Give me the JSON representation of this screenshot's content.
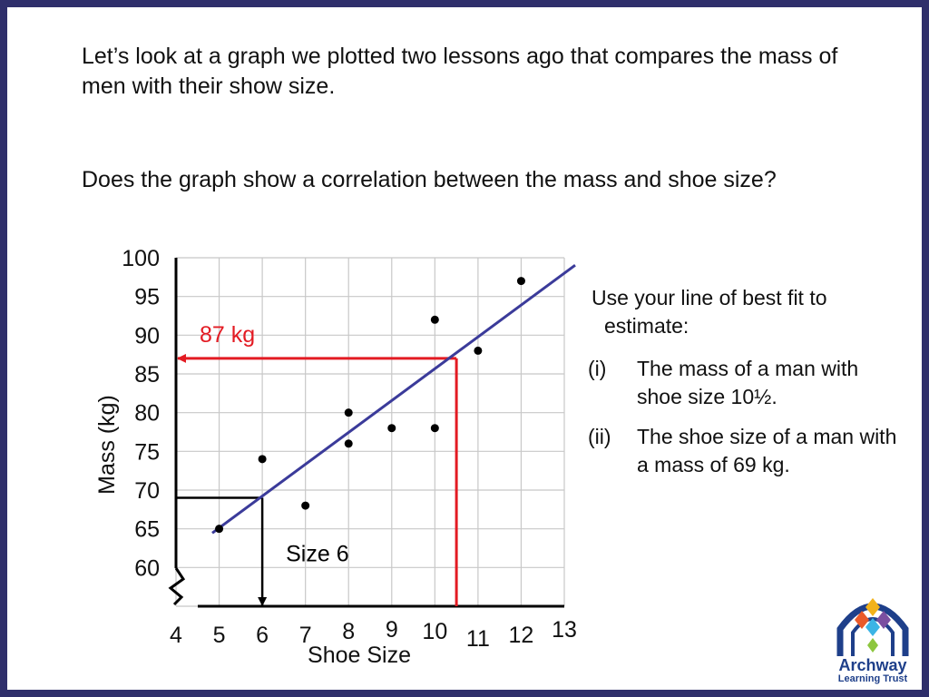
{
  "slide": {
    "intro": "Let’s look at a graph we plotted two lessons ago that compares the mass of men with their show size.",
    "question": "Does the graph show a correlation between the mass and shoe size?",
    "task_prompt_line1": "Use your line of best fit to",
    "task_prompt_line2": "estimate:",
    "tasks": [
      {
        "num": "(i)",
        "text": "The mass of a man with shoe size 10½."
      },
      {
        "num": "(ii)",
        "text": "The shoe size of a man with a mass of 69 kg."
      }
    ],
    "logo": {
      "name": "Archway",
      "subtitle": "Learning Trust"
    }
  },
  "chart_data": {
    "type": "scatter",
    "xlabel": "Shoe Size",
    "ylabel": "Mass (kg)",
    "xlim": [
      4,
      13
    ],
    "ylim": [
      55,
      100
    ],
    "x_ticks": [
      4,
      5,
      6,
      7,
      8,
      9,
      10,
      11,
      12,
      13
    ],
    "y_ticks": [
      60,
      65,
      70,
      75,
      80,
      85,
      90,
      95,
      100
    ],
    "grid": true,
    "axis_break_y": true,
    "points": [
      {
        "x": 5,
        "y": 65
      },
      {
        "x": 6,
        "y": 74
      },
      {
        "x": 7,
        "y": 68
      },
      {
        "x": 8,
        "y": 80
      },
      {
        "x": 8,
        "y": 76
      },
      {
        "x": 9,
        "y": 78
      },
      {
        "x": 10,
        "y": 92
      },
      {
        "x": 10,
        "y": 78
      },
      {
        "x": 11,
        "y": 88
      },
      {
        "x": 12,
        "y": 97
      }
    ],
    "best_fit": {
      "x1": 4,
      "y1": 61,
      "x2": 13,
      "y2": 98,
      "color": "#3b3b9a"
    },
    "annotations": [
      {
        "label": "87 kg",
        "x": 10.5,
        "y": 87,
        "color": "#e31b23",
        "direction": "to-y-axis"
      },
      {
        "label": "Size 6",
        "x": 6,
        "y": 69,
        "color": "#000000",
        "direction": "to-x-axis"
      }
    ]
  }
}
